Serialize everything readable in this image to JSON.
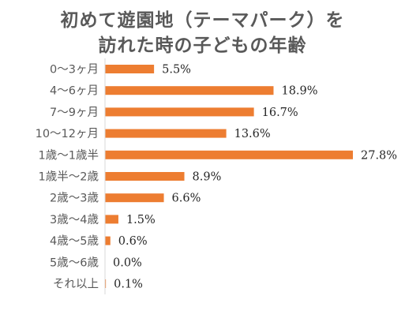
{
  "chart_data": {
    "type": "bar",
    "orientation": "horizontal",
    "title_line1": "初めて遊園地（テーマパーク）を",
    "title_line2": "訪れた時の子どもの年齢",
    "categories": [
      "0～3ヶ月",
      "4～6ヶ月",
      "7～9ヶ月",
      "10～12ヶ月",
      "1歳～1歳半",
      "1歳半～2歳",
      "2歳～3歳",
      "3歳～4歳",
      "4歳～5歳",
      "5歳～6歳",
      "それ以上"
    ],
    "values": [
      5.5,
      18.9,
      16.7,
      13.6,
      27.8,
      8.9,
      6.6,
      1.5,
      0.6,
      0.0,
      0.1
    ],
    "value_labels": [
      "5.5%",
      "18.9%",
      "16.7%",
      "13.6%",
      "27.8%",
      "8.9%",
      "6.6%",
      "1.5%",
      "0.6%",
      "0.0%",
      "0.1%"
    ],
    "xlim": [
      0,
      27.8
    ],
    "grid": false,
    "legend": "none",
    "bar_color": "#ED7D31",
    "axis_color": "#D9D9D9"
  }
}
